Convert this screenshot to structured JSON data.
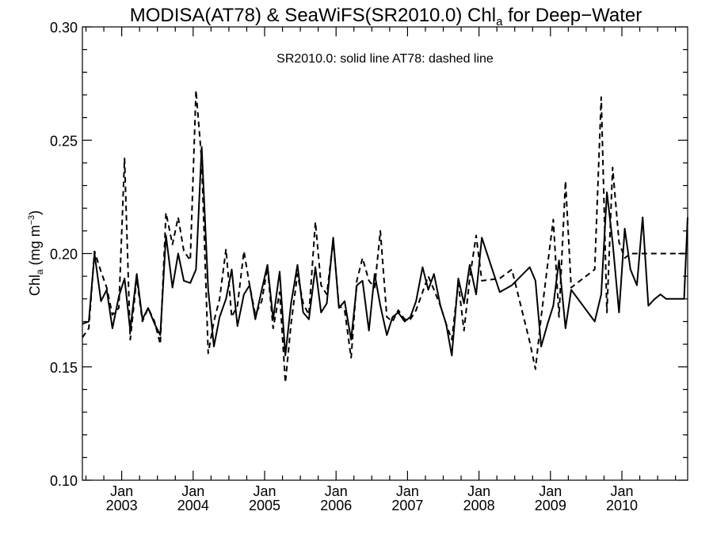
{
  "chart_data": {
    "type": "line",
    "title_parts": {
      "main": "MODISA(AT78) & SeaWiFS(SR2010.0)  Chl",
      "sub": "a",
      "tail": " for Deep−Water"
    },
    "annotation": "SR2010.0: solid line   AT78: dashed line",
    "ylabel_parts": {
      "main": "Chl",
      "sub": "a",
      "unit": " (mg m",
      "sup": "−3",
      "close": ")"
    },
    "ylim": [
      0.1,
      0.3
    ],
    "yticks": [
      "0.10",
      "0.15",
      "0.20",
      "0.25",
      "0.30"
    ],
    "xlim": [
      2002.45,
      2010.92
    ],
    "xticks": [
      {
        "month": "Jan",
        "year": "2003",
        "x": 2003.0
      },
      {
        "month": "Jan",
        "year": "2004",
        "x": 2004.0
      },
      {
        "month": "Jan",
        "year": "2005",
        "x": 2005.0
      },
      {
        "month": "Jan",
        "year": "2006",
        "x": 2006.0
      },
      {
        "month": "Jan",
        "year": "2007",
        "x": 2007.0
      },
      {
        "month": "Jan",
        "year": "2008",
        "x": 2008.0
      },
      {
        "month": "Jan",
        "year": "2009",
        "x": 2009.0
      },
      {
        "month": "Jan",
        "year": "2010",
        "x": 2010.0
      }
    ],
    "grid": false,
    "series": [
      {
        "name": "SR2010.0",
        "style": "solid",
        "x": [
          2002.45,
          2002.54,
          2002.62,
          2002.71,
          2002.79,
          2002.87,
          2002.96,
          2003.04,
          2003.12,
          2003.21,
          2003.29,
          2003.37,
          2003.46,
          2003.54,
          2003.62,
          2003.71,
          2003.79,
          2003.87,
          2003.96,
          2004.04,
          2004.12,
          2004.21,
          2004.29,
          2004.37,
          2004.46,
          2004.54,
          2004.62,
          2004.71,
          2004.79,
          2004.87,
          2004.96,
          2005.04,
          2005.12,
          2005.21,
          2005.29,
          2005.37,
          2005.46,
          2005.54,
          2005.62,
          2005.71,
          2005.79,
          2005.87,
          2005.96,
          2006.04,
          2006.12,
          2006.21,
          2006.29,
          2006.37,
          2006.46,
          2006.54,
          2006.62,
          2006.71,
          2006.79,
          2006.87,
          2006.96,
          2007.04,
          2007.12,
          2007.21,
          2007.29,
          2007.37,
          2007.46,
          2007.54,
          2007.62,
          2007.71,
          2007.79,
          2007.87,
          2007.96,
          2008.04,
          2008.29,
          2008.46,
          2008.71,
          2008.79,
          2008.87,
          2008.96,
          2009.04,
          2009.12,
          2009.21,
          2009.29,
          2009.62,
          2009.71,
          2009.79,
          2009.87,
          2009.96,
          2010.04,
          2010.12,
          2010.21,
          2010.29,
          2010.37,
          2010.46,
          2010.54,
          2010.62,
          2010.71,
          2010.79,
          2010.87,
          2010.92
        ],
        "values": [
          0.169,
          0.17,
          0.2,
          0.179,
          0.184,
          0.167,
          0.181,
          0.189,
          0.166,
          0.191,
          0.171,
          0.176,
          0.169,
          0.164,
          0.208,
          0.185,
          0.2,
          0.188,
          0.187,
          0.193,
          0.247,
          0.184,
          0.159,
          0.172,
          0.18,
          0.193,
          0.168,
          0.182,
          0.186,
          0.171,
          0.184,
          0.195,
          0.171,
          0.192,
          0.155,
          0.178,
          0.195,
          0.174,
          0.171,
          0.194,
          0.174,
          0.178,
          0.207,
          0.176,
          0.179,
          0.162,
          0.186,
          0.188,
          0.166,
          0.191,
          0.177,
          0.164,
          0.172,
          0.174,
          0.17,
          0.172,
          0.179,
          0.194,
          0.184,
          0.191,
          0.177,
          0.169,
          0.155,
          0.189,
          0.178,
          0.195,
          0.182,
          0.207,
          0.183,
          0.186,
          0.194,
          0.188,
          0.159,
          0.169,
          0.177,
          0.197,
          0.167,
          0.184,
          0.17,
          0.182,
          0.227,
          0.205,
          0.174,
          0.211,
          0.193,
          0.186,
          0.216,
          0.177,
          0.18,
          0.182,
          0.18,
          0.18,
          0.18,
          0.18,
          0.216
        ]
      },
      {
        "name": "AT78",
        "style": "dashed",
        "x": [
          2002.45,
          2002.54,
          2002.62,
          2002.71,
          2002.79,
          2002.87,
          2002.96,
          2003.04,
          2003.12,
          2003.21,
          2003.29,
          2003.37,
          2003.46,
          2003.54,
          2003.62,
          2003.71,
          2003.79,
          2003.87,
          2003.96,
          2004.04,
          2004.12,
          2004.21,
          2004.29,
          2004.37,
          2004.46,
          2004.54,
          2004.62,
          2004.71,
          2004.79,
          2004.87,
          2004.96,
          2005.04,
          2005.12,
          2005.21,
          2005.29,
          2005.37,
          2005.46,
          2005.54,
          2005.62,
          2005.71,
          2005.79,
          2005.87,
          2005.96,
          2006.04,
          2006.12,
          2006.21,
          2006.29,
          2006.37,
          2006.46,
          2006.54,
          2006.62,
          2006.71,
          2006.79,
          2006.87,
          2006.96,
          2007.04,
          2007.12,
          2007.21,
          2007.29,
          2007.37,
          2007.46,
          2007.54,
          2007.62,
          2007.71,
          2007.79,
          2007.87,
          2007.96,
          2008.04,
          2008.29,
          2008.46,
          2008.71,
          2008.79,
          2008.87,
          2008.96,
          2009.04,
          2009.12,
          2009.21,
          2009.29,
          2009.62,
          2009.71,
          2009.79,
          2009.87,
          2009.96,
          2010.04,
          2010.12,
          2010.21,
          2010.29,
          2010.37,
          2010.46,
          2010.54,
          2010.62,
          2010.71,
          2010.79,
          2010.87,
          2010.92
        ],
        "values": [
          0.163,
          0.167,
          0.201,
          0.192,
          0.185,
          0.173,
          0.176,
          0.242,
          0.162,
          0.189,
          0.17,
          0.176,
          0.17,
          0.16,
          0.218,
          0.204,
          0.216,
          0.201,
          0.197,
          0.272,
          0.241,
          0.156,
          0.17,
          0.18,
          0.202,
          0.172,
          0.177,
          0.201,
          0.186,
          0.173,
          0.179,
          0.194,
          0.167,
          0.183,
          0.143,
          0.169,
          0.191,
          0.178,
          0.173,
          0.214,
          0.186,
          0.182,
          0.206,
          0.177,
          0.175,
          0.154,
          0.188,
          0.198,
          0.188,
          0.185,
          0.21,
          0.172,
          0.17,
          0.175,
          0.171,
          0.171,
          0.175,
          0.183,
          0.19,
          0.184,
          0.177,
          0.169,
          0.162,
          0.187,
          0.166,
          0.189,
          0.208,
          0.188,
          0.189,
          0.193,
          0.161,
          0.149,
          0.172,
          0.195,
          0.215,
          0.172,
          0.232,
          0.185,
          0.193,
          0.269,
          0.174,
          0.238,
          0.205,
          0.198,
          0.2,
          0.2,
          0.2,
          0.2,
          0.2,
          0.2,
          0.2,
          0.2,
          0.2,
          0.2,
          0.2
        ]
      }
    ]
  }
}
